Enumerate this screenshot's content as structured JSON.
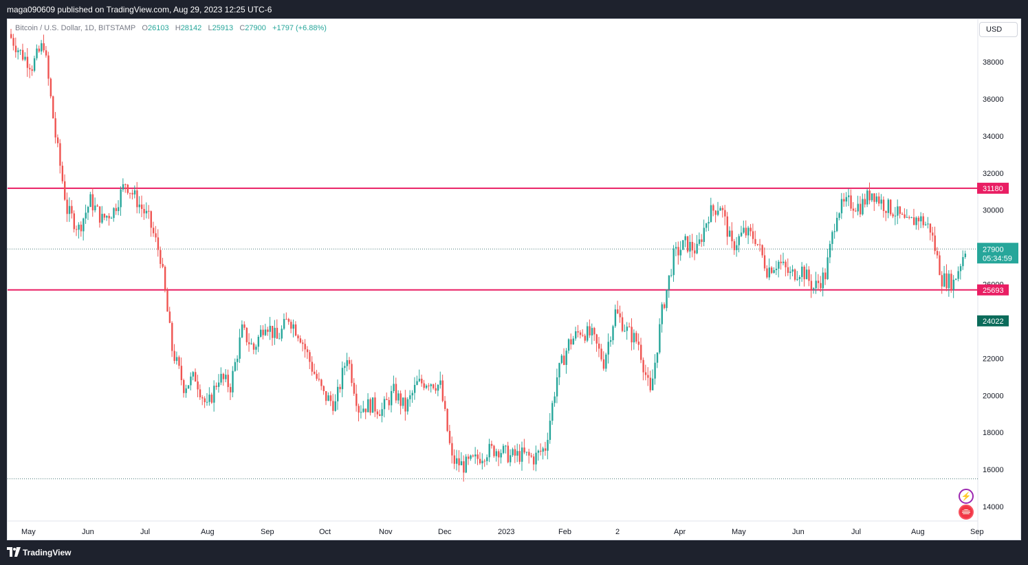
{
  "header": {
    "published_text": "maga090609 published on TradingView.com, Aug 29, 2023 12:25 UTC-6"
  },
  "legend": {
    "symbol": "Bitcoin / U.S. Dollar, 1D, BITSTAMP",
    "open_label": "O",
    "open_value": "26103",
    "high_label": "H",
    "high_value": "28142",
    "low_label": "L",
    "low_value": "25913",
    "close_label": "C",
    "close_value": "27900",
    "change": "+1797 (+6.88%)"
  },
  "currency_button": "USD",
  "footer": {
    "brand": "TradingView"
  },
  "colors": {
    "up": "#26a69a",
    "down": "#ef5350",
    "hline": "#e91e63",
    "panel": "#1e222d"
  },
  "chart_data": {
    "type": "candlestick",
    "title": "Bitcoin / U.S. Dollar, 1D, BITSTAMP",
    "y_ticks": [
      14000,
      16000,
      18000,
      20000,
      22000,
      24000,
      26000,
      28000,
      30000,
      32000,
      34000,
      36000,
      38000
    ],
    "x_ticks": [
      "May",
      "Jun",
      "Jul",
      "Aug",
      "Sep",
      "Oct",
      "Nov",
      "Dec",
      "2023",
      "Feb",
      "2",
      "Apr",
      "May",
      "Jun",
      "Jul",
      "Aug",
      "Sep"
    ],
    "ylim": [
      12900,
      40000
    ],
    "price_levels": [
      {
        "label": "31180",
        "value": 31180,
        "style": "solid"
      },
      {
        "label": "25693",
        "value": 25693,
        "style": "solid"
      }
    ],
    "dotted_levels": [
      27900,
      15500
    ],
    "last_price": {
      "label": "27900",
      "countdown": "05:34:59",
      "value": 27900
    },
    "marker": {
      "label": "24022",
      "value": 24022
    },
    "price_path": [
      [
        "May",
        39500
      ],
      [
        "May",
        38500
      ],
      [
        "May",
        37800
      ],
      [
        "May",
        39000
      ],
      [
        "May",
        34000
      ],
      [
        "May",
        30000
      ],
      [
        "May",
        29000
      ],
      [
        "May",
        30500
      ],
      [
        "May",
        29500
      ],
      [
        "Jun",
        30000
      ],
      [
        "Jun",
        31500
      ],
      [
        "Jun",
        30500
      ],
      [
        "Jun",
        29500
      ],
      [
        "Jun",
        27500
      ],
      [
        "Jun",
        22500
      ],
      [
        "Jun",
        20500
      ],
      [
        "Jun",
        21000
      ],
      [
        "Jul",
        19300
      ],
      [
        "Jul",
        21000
      ],
      [
        "Jul",
        20500
      ],
      [
        "Jul",
        23500
      ],
      [
        "Jul",
        22500
      ],
      [
        "Aug",
        24000
      ],
      [
        "Aug",
        23000
      ],
      [
        "Aug",
        24200
      ],
      [
        "Aug",
        23200
      ],
      [
        "Aug",
        21500
      ],
      [
        "Sep",
        20000
      ],
      [
        "Sep",
        19500
      ],
      [
        "Sep",
        22200
      ],
      [
        "Sep",
        19300
      ],
      [
        "Oct",
        19500
      ],
      [
        "Oct",
        19200
      ],
      [
        "Oct",
        20200
      ],
      [
        "Oct",
        19300
      ],
      [
        "Oct",
        20600
      ],
      [
        "Nov",
        20800
      ],
      [
        "Nov",
        20500
      ],
      [
        "Nov",
        16500
      ],
      [
        "Nov",
        16200
      ],
      [
        "Nov",
        16500
      ],
      [
        "Dec",
        17000
      ],
      [
        "Dec",
        17100
      ],
      [
        "Dec",
        16700
      ],
      [
        "Dec",
        16800
      ],
      [
        "2023",
        16600
      ],
      [
        "2023",
        17200
      ],
      [
        "2023",
        21000
      ],
      [
        "2023",
        22800
      ],
      [
        "2023",
        23500
      ],
      [
        "Feb",
        23200
      ],
      [
        "Feb",
        21800
      ],
      [
        "Feb",
        24500
      ],
      [
        "Feb",
        23500
      ],
      [
        "Feb",
        22800
      ],
      [
        "2",
        20000
      ],
      [
        "2",
        24500
      ],
      [
        "2",
        27500
      ],
      [
        "2",
        28200
      ],
      [
        "Apr",
        27800
      ],
      [
        "Apr",
        29800
      ],
      [
        "Apr",
        30300
      ],
      [
        "Apr",
        28000
      ],
      [
        "May",
        28800
      ],
      [
        "May",
        28500
      ],
      [
        "May",
        26800
      ],
      [
        "May",
        27200
      ],
      [
        "May",
        26500
      ],
      [
        "Jun",
        26800
      ],
      [
        "Jun",
        25800
      ],
      [
        "Jun",
        26500
      ],
      [
        "Jun",
        30000
      ],
      [
        "Jul",
        30400
      ],
      [
        "Jul",
        30200
      ],
      [
        "Jul",
        31000
      ],
      [
        "Jul",
        30300
      ],
      [
        "Jul",
        29900
      ],
      [
        "Aug",
        29200
      ],
      [
        "Aug",
        29600
      ],
      [
        "Aug",
        29000
      ],
      [
        "Aug",
        26300
      ],
      [
        "Aug",
        26100
      ],
      [
        "Sep",
        27900
      ]
    ]
  }
}
